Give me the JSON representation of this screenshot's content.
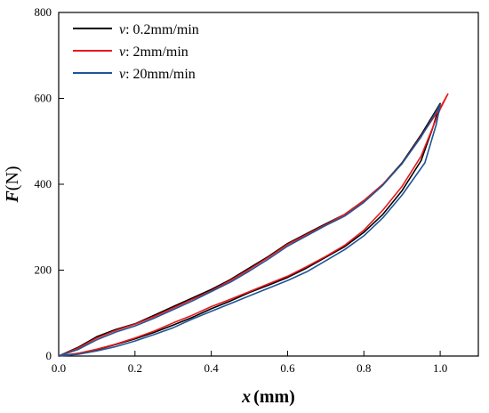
{
  "chart_data": {
    "type": "line",
    "xlabel": {
      "var": "x",
      "unit": "(mm)"
    },
    "ylabel": {
      "var": "F",
      "unit": "(N)"
    },
    "xlim": [
      0.0,
      1.1
    ],
    "ylim": [
      0,
      800
    ],
    "xticks": [
      "0.0",
      "0.2",
      "0.4",
      "0.6",
      "0.8",
      "1.0"
    ],
    "yticks": [
      "0",
      "200",
      "400",
      "600",
      "800"
    ],
    "grid": false,
    "legend_position": "top-left",
    "series": [
      {
        "name": "v",
        "label_rest": ": 0.2mm/min",
        "color": "#000000",
        "x": [
          0.0,
          0.05,
          0.1,
          0.15,
          0.2,
          0.25,
          0.3,
          0.35,
          0.4,
          0.45,
          0.5,
          0.55,
          0.6,
          0.65,
          0.7,
          0.75,
          0.8,
          0.85,
          0.9,
          0.95,
          1.0,
          0.98,
          0.95,
          0.9,
          0.85,
          0.8,
          0.75,
          0.7,
          0.65,
          0.6,
          0.55,
          0.5,
          0.45,
          0.4,
          0.35,
          0.3,
          0.25,
          0.2,
          0.15,
          0.1,
          0.05,
          0.0
        ],
        "y": [
          0,
          20,
          45,
          62,
          75,
          95,
          115,
          135,
          155,
          178,
          205,
          232,
          262,
          285,
          308,
          330,
          362,
          400,
          450,
          515,
          588,
          530,
          455,
          385,
          330,
          288,
          255,
          230,
          205,
          183,
          165,
          148,
          128,
          110,
          90,
          72,
          55,
          40,
          27,
          15,
          6,
          0
        ]
      },
      {
        "name": "v",
        "label_rest": ": 2mm/min",
        "color": "#e8191c",
        "x": [
          0.0,
          0.05,
          0.1,
          0.15,
          0.2,
          0.25,
          0.3,
          0.35,
          0.4,
          0.45,
          0.5,
          0.55,
          0.6,
          0.65,
          0.7,
          0.75,
          0.8,
          0.85,
          0.9,
          0.95,
          1.0,
          1.02,
          1.0,
          0.95,
          0.9,
          0.85,
          0.8,
          0.75,
          0.7,
          0.65,
          0.6,
          0.55,
          0.5,
          0.45,
          0.4,
          0.35,
          0.3,
          0.25,
          0.2,
          0.15,
          0.1,
          0.05,
          0.0
        ],
        "y": [
          0,
          18,
          42,
          60,
          74,
          92,
          112,
          132,
          152,
          176,
          202,
          230,
          260,
          283,
          306,
          330,
          362,
          400,
          448,
          512,
          578,
          610,
          575,
          465,
          395,
          340,
          293,
          258,
          232,
          208,
          186,
          168,
          150,
          132,
          115,
          95,
          77,
          58,
          42,
          28,
          16,
          6,
          0
        ]
      },
      {
        "name": "v",
        "label_rest": ": 20mm/min",
        "color": "#1f5597",
        "x": [
          0.0,
          0.05,
          0.1,
          0.15,
          0.2,
          0.25,
          0.3,
          0.35,
          0.4,
          0.45,
          0.5,
          0.55,
          0.6,
          0.65,
          0.7,
          0.75,
          0.8,
          0.85,
          0.9,
          0.95,
          1.0,
          0.99,
          0.96,
          0.9,
          0.85,
          0.8,
          0.75,
          0.7,
          0.65,
          0.6,
          0.55,
          0.5,
          0.45,
          0.4,
          0.35,
          0.3,
          0.25,
          0.2,
          0.15,
          0.1,
          0.05,
          0.0
        ],
        "y": [
          0,
          15,
          38,
          56,
          70,
          88,
          108,
          128,
          150,
          172,
          198,
          226,
          256,
          280,
          304,
          326,
          358,
          398,
          448,
          510,
          585,
          540,
          450,
          375,
          322,
          280,
          248,
          222,
          196,
          176,
          158,
          140,
          122,
          104,
          86,
          66,
          50,
          35,
          22,
          12,
          4,
          0
        ]
      }
    ]
  }
}
